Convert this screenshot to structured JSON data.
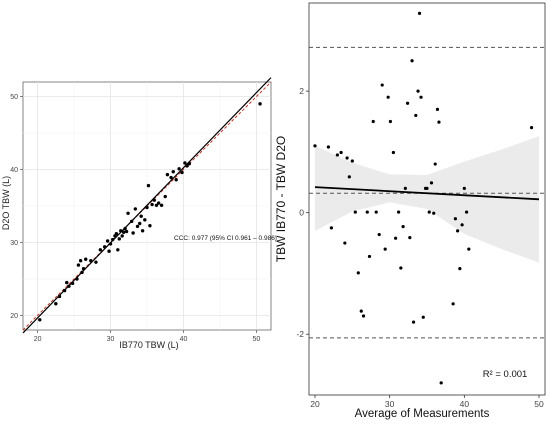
{
  "chart_data": [
    {
      "type": "scatter",
      "title": "",
      "xlabel": "IB770 TBW (L)",
      "ylabel": "D2O TBW (L)",
      "xlim": [
        18,
        52
      ],
      "ylim": [
        18,
        52
      ],
      "xticks": [
        20,
        30,
        40,
        50
      ],
      "yticks": [
        20,
        30,
        40,
        50
      ],
      "grid": true,
      "annotation": "CCC: 0.977 (95% CI 0.961 – 0.986)",
      "lines": [
        {
          "kind": "identity",
          "color": "#c0392b",
          "style": "dashed",
          "from": [
            18,
            18
          ],
          "to": [
            52,
            52
          ]
        },
        {
          "kind": "fit",
          "color": "#000000",
          "style": "solid",
          "from": [
            18,
            17.6
          ],
          "to": [
            52,
            52.6
          ]
        }
      ],
      "points": [
        [
          20.3,
          19.4
        ],
        [
          22.5,
          21.6
        ],
        [
          23.0,
          22.6
        ],
        [
          23.7,
          23.4
        ],
        [
          24.0,
          24.5
        ],
        [
          24.3,
          24.0
        ],
        [
          24.8,
          24.4
        ],
        [
          25.4,
          25.0
        ],
        [
          25.6,
          26.9
        ],
        [
          25.9,
          27.5
        ],
        [
          26.1,
          25.9
        ],
        [
          26.3,
          26.4
        ],
        [
          26.6,
          27.7
        ],
        [
          27.3,
          27.5
        ],
        [
          28.0,
          27.3
        ],
        [
          28.6,
          29.0
        ],
        [
          29.2,
          29.4
        ],
        [
          29.6,
          30.2
        ],
        [
          29.8,
          28.8
        ],
        [
          30.0,
          29.8
        ],
        [
          30.3,
          30.4
        ],
        [
          30.6,
          30.9
        ],
        [
          30.8,
          31.2
        ],
        [
          31.0,
          29.0
        ],
        [
          31.2,
          30.5
        ],
        [
          31.4,
          31.6
        ],
        [
          31.6,
          30.9
        ],
        [
          31.8,
          31.4
        ],
        [
          32.0,
          31.9
        ],
        [
          32.2,
          31.5
        ],
        [
          32.4,
          34.0
        ],
        [
          32.9,
          32.9
        ],
        [
          33.1,
          31.3
        ],
        [
          33.4,
          34.6
        ],
        [
          33.7,
          32.2
        ],
        [
          34.0,
          32.6
        ],
        [
          34.2,
          33.6
        ],
        [
          34.4,
          31.6
        ],
        [
          34.7,
          33.1
        ],
        [
          35.0,
          34.8
        ],
        [
          35.2,
          37.8
        ],
        [
          35.4,
          32.3
        ],
        [
          35.7,
          35.2
        ],
        [
          36.0,
          35.8
        ],
        [
          36.3,
          35.1
        ],
        [
          36.6,
          35.4
        ],
        [
          37.0,
          35.1
        ],
        [
          37.5,
          36.3
        ],
        [
          37.8,
          39.3
        ],
        [
          38.3,
          38.9
        ],
        [
          38.6,
          39.7
        ],
        [
          39.0,
          38.6
        ],
        [
          39.4,
          40.1
        ],
        [
          39.8,
          39.6
        ],
        [
          40.2,
          40.9
        ],
        [
          40.5,
          40.5
        ],
        [
          40.8,
          40.8
        ],
        [
          50.5,
          49.0
        ]
      ]
    },
    {
      "type": "scatter",
      "title": "",
      "xlabel": "Average of Measurements",
      "ylabel": "TBW IB770 - TBW D2O",
      "xlim": [
        19.2,
        50.8
      ],
      "ylim": [
        -3.0,
        3.45
      ],
      "xticks": [
        20,
        30,
        40,
        50
      ],
      "yticks": [
        -2,
        0,
        2
      ],
      "grid": false,
      "annotation": "R² = 0.001",
      "mean_line": 0.32,
      "upper_loa": 2.72,
      "lower_loa": -2.06,
      "fit_line": {
        "from": [
          20,
          0.42
        ],
        "to": [
          50,
          0.22
        ]
      },
      "confidence_band": {
        "x": [
          20,
          25,
          30,
          35,
          40,
          45,
          50
        ],
        "upper": [
          1.1,
          0.82,
          0.63,
          0.62,
          0.84,
          1.04,
          1.26
        ],
        "lower": [
          -0.3,
          0.02,
          0.17,
          0.06,
          -0.35,
          -0.6,
          -0.82
        ]
      },
      "points": [
        [
          20.0,
          1.1
        ],
        [
          21.8,
          1.08
        ],
        [
          22.2,
          -0.25
        ],
        [
          23.0,
          0.95
        ],
        [
          23.5,
          0.99
        ],
        [
          24.0,
          -0.5
        ],
        [
          24.3,
          0.9
        ],
        [
          24.6,
          0.59
        ],
        [
          25.0,
          0.85
        ],
        [
          25.4,
          0.01
        ],
        [
          25.8,
          -0.99
        ],
        [
          26.2,
          -1.62
        ],
        [
          26.5,
          -1.7
        ],
        [
          27.0,
          0.01
        ],
        [
          27.3,
          -0.72
        ],
        [
          27.8,
          1.5
        ],
        [
          28.2,
          0.01
        ],
        [
          28.6,
          -0.36
        ],
        [
          29.0,
          2.1
        ],
        [
          29.4,
          -0.6
        ],
        [
          29.8,
          1.9
        ],
        [
          30.1,
          1.5
        ],
        [
          30.5,
          0.99
        ],
        [
          30.8,
          -0.42
        ],
        [
          31.2,
          0.01
        ],
        [
          31.5,
          -0.91
        ],
        [
          31.8,
          -0.23
        ],
        [
          32.1,
          0.4
        ],
        [
          32.4,
          1.8
        ],
        [
          32.7,
          -0.41
        ],
        [
          33.0,
          2.5
        ],
        [
          33.2,
          -1.8
        ],
        [
          33.5,
          1.6
        ],
        [
          33.8,
          2.0
        ],
        [
          34.0,
          3.28
        ],
        [
          34.2,
          1.9
        ],
        [
          34.5,
          -1.72
        ],
        [
          34.8,
          0.4
        ],
        [
          35.0,
          0.4
        ],
        [
          35.3,
          0.01
        ],
        [
          35.6,
          0.49
        ],
        [
          35.9,
          -0.01
        ],
        [
          36.1,
          0.8
        ],
        [
          36.4,
          1.7
        ],
        [
          36.6,
          1.49
        ],
        [
          36.9,
          -2.8
        ],
        [
          38.5,
          -1.5
        ],
        [
          38.8,
          -0.1
        ],
        [
          39.1,
          -0.3
        ],
        [
          39.4,
          -0.92
        ],
        [
          39.7,
          -0.2
        ],
        [
          40.0,
          0.4
        ],
        [
          40.3,
          0.01
        ],
        [
          40.6,
          -0.6
        ],
        [
          49.0,
          1.4
        ]
      ]
    }
  ]
}
